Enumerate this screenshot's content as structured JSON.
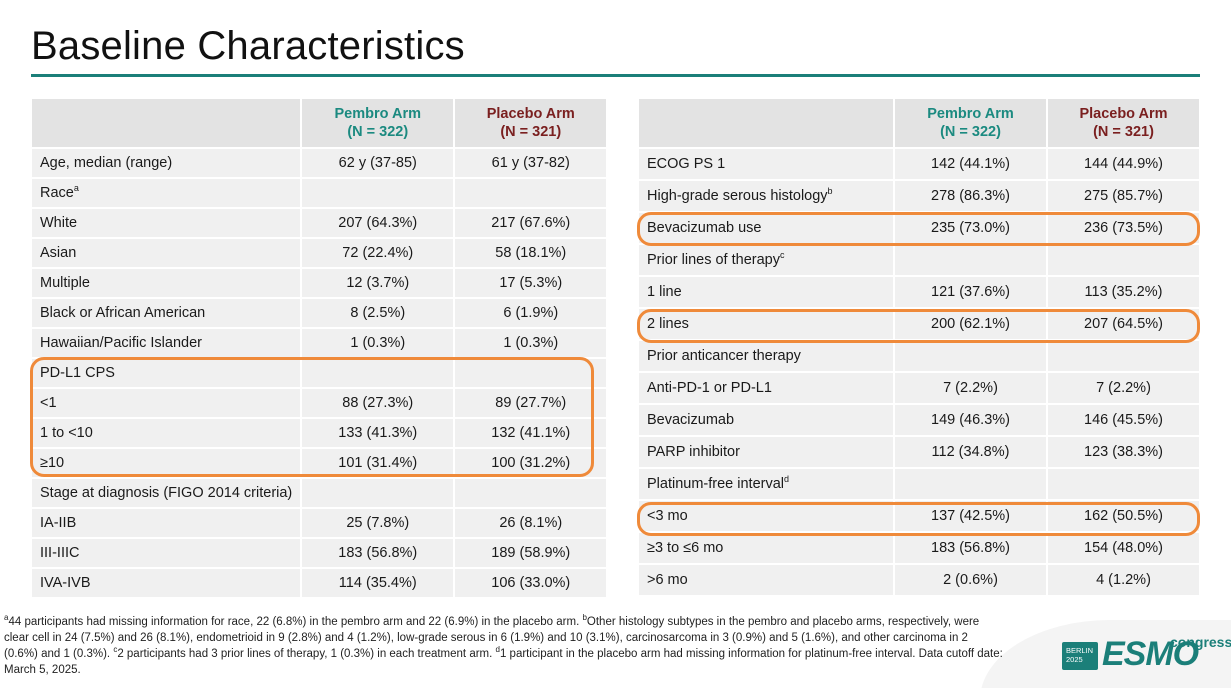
{
  "title": "Baseline Characteristics",
  "left_table": {
    "headers": {
      "pembro_line1": "Pembro Arm",
      "pembro_line2": "(N = 322)",
      "placebo_line1": "Placebo Arm",
      "placebo_line2": "(N = 321)"
    },
    "rows": [
      {
        "label": "Age, median (range)",
        "pembro": "62 y (37-85)",
        "placebo": "61 y (37-82)"
      },
      {
        "label": "Race",
        "sup": "a",
        "pembro": "",
        "placebo": ""
      },
      {
        "label": "White",
        "pembro": "207 (64.3%)",
        "placebo": "217 (67.6%)"
      },
      {
        "label": "Asian",
        "pembro": "72 (22.4%)",
        "placebo": "58 (18.1%)"
      },
      {
        "label": "Multiple",
        "pembro": "12 (3.7%)",
        "placebo": "17 (5.3%)"
      },
      {
        "label": "Black or African American",
        "pembro": "8 (2.5%)",
        "placebo": "6 (1.9%)"
      },
      {
        "label": "Hawaiian/Pacific Islander",
        "pembro": "1 (0.3%)",
        "placebo": "1 (0.3%)"
      },
      {
        "label": "PD-L1 CPS",
        "pembro": "",
        "placebo": ""
      },
      {
        "label": "<1",
        "pembro": "88 (27.3%)",
        "placebo": "89 (27.7%)"
      },
      {
        "label": "1 to <10",
        "pembro": "133 (41.3%)",
        "placebo": "132 (41.1%)"
      },
      {
        "label": "≥10",
        "pembro": "101 (31.4%)",
        "placebo": "100 (31.2%)"
      },
      {
        "label": "Stage at diagnosis (FIGO 2014 criteria)",
        "pembro": "",
        "placebo": ""
      },
      {
        "label": "IA-IIB",
        "pembro": "25 (7.8%)",
        "placebo": "26 (8.1%)"
      },
      {
        "label": "III-IIIC",
        "pembro": "183 (56.8%)",
        "placebo": "189 (58.9%)"
      },
      {
        "label": "IVA-IVB",
        "pembro": "114 (35.4%)",
        "placebo": "106 (33.0%)"
      }
    ]
  },
  "right_table": {
    "headers": {
      "pembro_line1": "Pembro Arm",
      "pembro_line2": "(N = 322)",
      "placebo_line1": "Placebo Arm",
      "placebo_line2": "(N = 321)"
    },
    "rows": [
      {
        "label": "ECOG PS 1",
        "pembro": "142 (44.1%)",
        "placebo": "144 (44.9%)"
      },
      {
        "label": "High-grade serous histology",
        "sup": "b",
        "pembro": "278 (86.3%)",
        "placebo": "275 (85.7%)"
      },
      {
        "label": "Bevacizumab use",
        "pembro": "235 (73.0%)",
        "placebo": "236 (73.5%)"
      },
      {
        "label": "Prior lines of therapy",
        "sup": "c",
        "pembro": "",
        "placebo": ""
      },
      {
        "label": "1 line",
        "pembro": "121 (37.6%)",
        "placebo": "113 (35.2%)"
      },
      {
        "label": "2 lines",
        "pembro": "200 (62.1%)",
        "placebo": "207 (64.5%)"
      },
      {
        "label": "Prior anticancer therapy",
        "pembro": "",
        "placebo": ""
      },
      {
        "label": "Anti-PD-1 or PD-L1",
        "pembro": "7 (2.2%)",
        "placebo": "7 (2.2%)"
      },
      {
        "label": "Bevacizumab",
        "pembro": "149 (46.3%)",
        "placebo": "146 (45.5%)"
      },
      {
        "label": "PARP inhibitor",
        "pembro": "112 (34.8%)",
        "placebo": "123 (38.3%)"
      },
      {
        "label": "Platinum-free interval",
        "sup": "d",
        "pembro": "",
        "placebo": ""
      },
      {
        "label": "<3 mo",
        "pembro": "137 (42.5%)",
        "placebo": "162 (50.5%)"
      },
      {
        "label": "≥3 to ≤6 mo",
        "pembro": "183 (56.8%)",
        "placebo": "154 (48.0%)"
      },
      {
        "label": ">6 mo",
        "pembro": "2 (0.6%)",
        "placebo": "4 (1.2%)"
      }
    ]
  },
  "footnote": {
    "a": "a",
    "text_a": "44 participants had missing information for race, 22 (6.8%) in the pembro arm and 22 (6.9%) in the placebo arm. ",
    "b": "b",
    "text_b": "Other histology subtypes in the pembro and placebo arms, respectively, were clear cell in 24 (7.5%) and 26 (8.1%), endometrioid in 9 (2.8%) and 4 (1.2%), low-grade serous in 6 (1.9%) and 10 (3.1%), carcinosarcoma in 3 (0.9%) and 5 (1.6%), and other carcinoma in 2 (0.6%) and 1 (0.3%). ",
    "c": "c",
    "text_c": "2 participants had 3 prior lines of therapy, 1 (0.3%) in each treatment arm. ",
    "d": "d",
    "text_d": "1 participant in the placebo arm had missing information for platinum-free interval. Data cutoff date: March 5, 2025."
  },
  "logo": {
    "badge_line1": "BERLIN",
    "badge_line2": "2025",
    "main": "ESMO",
    "sub": "congress"
  },
  "colors": {
    "accent": "#1b7f79",
    "pembro": "#1b8a80",
    "placebo": "#7a1f1f",
    "highlight": "#ef8a3a"
  }
}
